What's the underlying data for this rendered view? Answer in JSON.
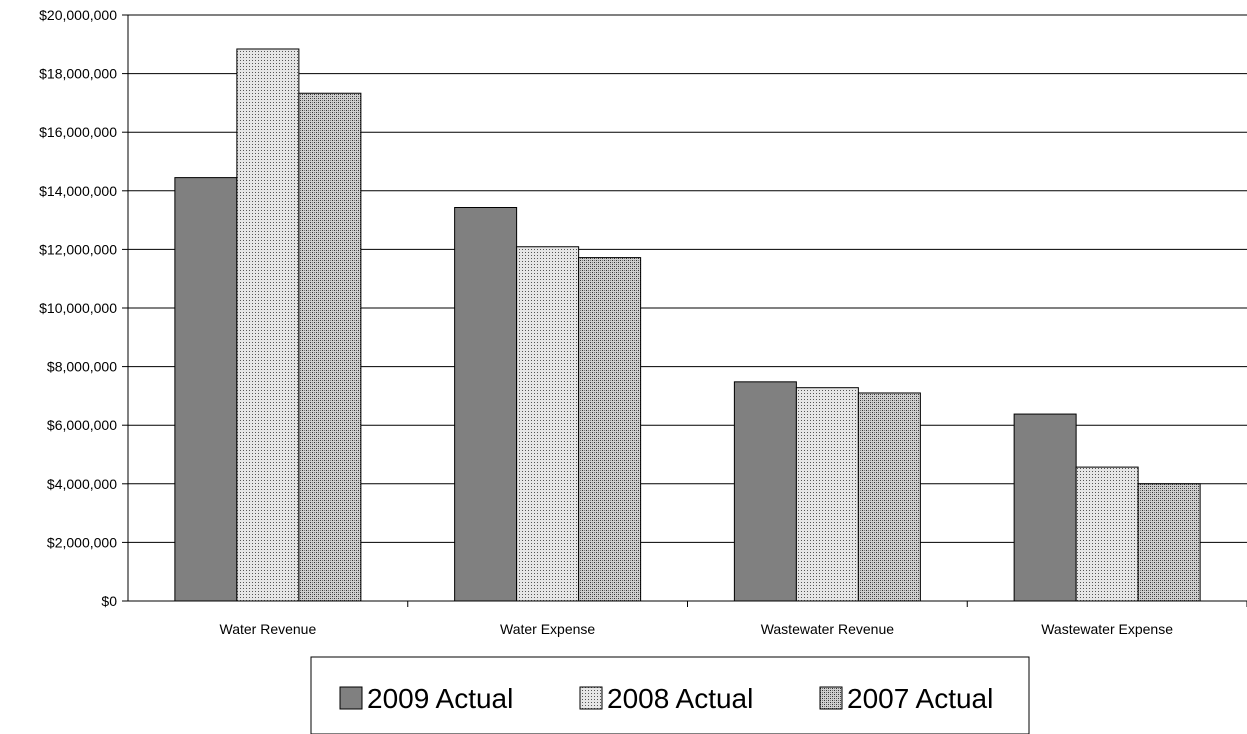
{
  "chart_data": {
    "type": "bar",
    "title": "",
    "xlabel": "",
    "ylabel": "",
    "categories": [
      "Water Revenue",
      "Water Expense",
      "Wastewater Revenue",
      "Wastewater Expense"
    ],
    "series": [
      {
        "name": "2009 Actual",
        "values": [
          14450000,
          13430000,
          7480000,
          6380000
        ],
        "color": "#808080",
        "pattern": "solid"
      },
      {
        "name": "2008 Actual",
        "values": [
          18840000,
          12090000,
          7280000,
          4570000
        ],
        "color": "#d9d9d9",
        "pattern": "fine-dots"
      },
      {
        "name": "2007 Actual",
        "values": [
          17330000,
          11720000,
          7100000,
          4000000
        ],
        "color": "#b3b3b3",
        "pattern": "crosshatch"
      }
    ],
    "ylim": [
      0,
      20000000
    ],
    "yticks": [
      0,
      2000000,
      4000000,
      6000000,
      8000000,
      10000000,
      12000000,
      14000000,
      16000000,
      18000000,
      20000000
    ],
    "ytick_labels": [
      "$0",
      "$2,000,000",
      "$4,000,000",
      "$6,000,000",
      "$8,000,000",
      "$10,000,000",
      "$12,000,000",
      "$14,000,000",
      "$16,000,000",
      "$18,000,000",
      "$20,000,000"
    ],
    "grid": true,
    "legend_position": "bottom"
  }
}
